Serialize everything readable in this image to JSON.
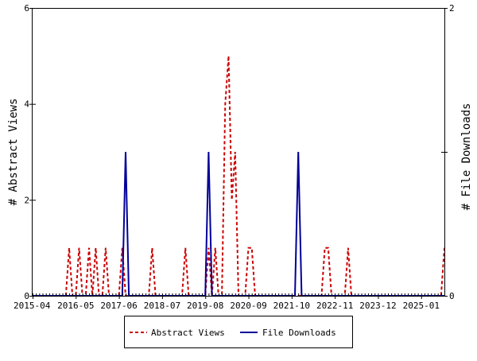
{
  "chart_data": {
    "type": "line",
    "x_start_month": "2015-04",
    "x_end_month": "2025-08",
    "x_ticks": [
      "2015-04",
      "2016-05",
      "2017-06",
      "2018-07",
      "2019-08",
      "2020-09",
      "2021-10",
      "2022-11",
      "2023-12",
      "2025-01"
    ],
    "y_left": {
      "label": "# Abstract Views",
      "ylim": [
        0,
        6
      ],
      "ticks": [
        "0",
        "2",
        "4",
        "6"
      ]
    },
    "y_right": {
      "label": "# File Downloads",
      "ylim": [
        0,
        2
      ],
      "ticks": [
        "0",
        "1",
        "2"
      ]
    },
    "legend_position": "bottom-center",
    "series": [
      {
        "name": "Abstract Views",
        "axis": "left",
        "color": "#cc0000",
        "style": "dashed",
        "points": [
          {
            "x": "2016-03",
            "y": 1
          },
          {
            "x": "2016-06",
            "y": 1
          },
          {
            "x": "2016-09",
            "y": 1
          },
          {
            "x": "2016-11",
            "y": 1
          },
          {
            "x": "2017-02",
            "y": 1
          },
          {
            "x": "2017-07",
            "y": 1
          },
          {
            "x": "2018-04",
            "y": 1
          },
          {
            "x": "2019-02",
            "y": 1
          },
          {
            "x": "2019-09",
            "y": 1
          },
          {
            "x": "2019-11",
            "y": 1
          },
          {
            "x": "2020-02",
            "y": 4
          },
          {
            "x": "2020-03",
            "y": 5
          },
          {
            "x": "2020-04",
            "y": 2
          },
          {
            "x": "2020-05",
            "y": 3
          },
          {
            "x": "2020-09",
            "y": 1
          },
          {
            "x": "2020-10",
            "y": 1
          },
          {
            "x": "2022-08",
            "y": 1
          },
          {
            "x": "2022-09",
            "y": 1
          },
          {
            "x": "2023-03",
            "y": 1
          },
          {
            "x": "2025-08",
            "y": 1
          }
        ]
      },
      {
        "name": "File Downloads",
        "axis": "right",
        "color": "#000099",
        "style": "solid",
        "points": [
          {
            "x": "2017-08",
            "y": 1
          },
          {
            "x": "2019-09",
            "y": 1
          },
          {
            "x": "2021-12",
            "y": 1
          }
        ]
      }
    ]
  }
}
